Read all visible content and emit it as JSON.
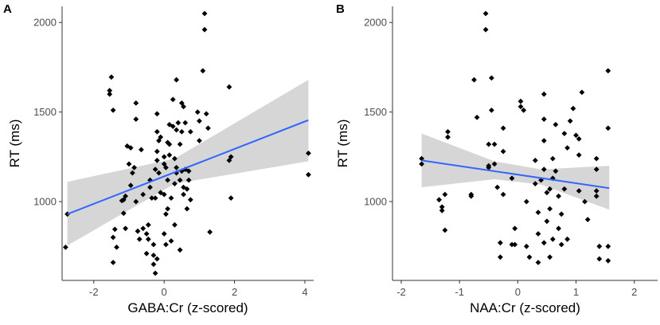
{
  "colors": {
    "points": "#000000",
    "fit_line": "#3366ff",
    "ci_band": "#cccccc",
    "axis": "#333333",
    "tick_text": "#4d4d4d"
  },
  "chart_data": [
    {
      "type": "scatter",
      "panel_label": "A",
      "title": "",
      "xlabel": "GABA:Cr (z-scored)",
      "ylabel": "RT (ms)",
      "xlim": [
        -2.9,
        4.25
      ],
      "ylim": [
        560,
        2090
      ],
      "x_ticks": [
        -2,
        0,
        2,
        4
      ],
      "y_ticks": [
        1000,
        1500,
        2000
      ],
      "x_tick_labels": [
        "-2",
        "0",
        "2",
        "4"
      ],
      "y_tick_labels": [
        "1000",
        "1500",
        "2000"
      ],
      "grid": false,
      "fit": {
        "x": [
          -2.75,
          4.1
        ],
        "y": [
          930,
          1455
        ]
      },
      "ci_band": {
        "x": [
          -2.75,
          0.3,
          4.1
        ],
        "upper": [
          1110,
          1240,
          1680
        ],
        "lower": [
          755,
          1100,
          1225
        ]
      },
      "points": [
        [
          -2.75,
          930
        ],
        [
          -2.8,
          745
        ],
        [
          -1.55,
          1620
        ],
        [
          -1.55,
          1600
        ],
        [
          -1.5,
          1695
        ],
        [
          -1.45,
          1510
        ],
        [
          -1.45,
          800
        ],
        [
          -1.45,
          660
        ],
        [
          -1.4,
          845
        ],
        [
          -1.35,
          745
        ],
        [
          -1.2,
          1005
        ],
        [
          -1.15,
          1010
        ],
        [
          -1.15,
          935
        ],
        [
          -1.1,
          1030
        ],
        [
          -1.1,
          850
        ],
        [
          -1.05,
          1310
        ],
        [
          -1.0,
          1210
        ],
        [
          -0.95,
          1300
        ],
        [
          -0.95,
          1090
        ],
        [
          -0.9,
          1160
        ],
        [
          -0.85,
          1190
        ],
        [
          -0.8,
          1550
        ],
        [
          -0.8,
          1460
        ],
        [
          -0.8,
          1000
        ],
        [
          -0.75,
          835
        ],
        [
          -0.7,
          790
        ],
        [
          -0.65,
          1290
        ],
        [
          -0.6,
          1040
        ],
        [
          -0.6,
          850
        ],
        [
          -0.5,
          820
        ],
        [
          -0.5,
          710
        ],
        [
          -0.45,
          790
        ],
        [
          -0.45,
          870
        ],
        [
          -0.4,
          1120
        ],
        [
          -0.4,
          1080
        ],
        [
          -0.35,
          1020
        ],
        [
          -0.3,
          650
        ],
        [
          -0.3,
          700
        ],
        [
          -0.3,
          760
        ],
        [
          -0.25,
          1180
        ],
        [
          -0.25,
          1020
        ],
        [
          -0.25,
          600
        ],
        [
          -0.2,
          1490
        ],
        [
          -0.2,
          1390
        ],
        [
          -0.2,
          1280
        ],
        [
          -0.2,
          1230
        ],
        [
          -0.2,
          680
        ],
        [
          -0.15,
          1340
        ],
        [
          -0.15,
          1160
        ],
        [
          -0.1,
          1360
        ],
        [
          -0.1,
          1050
        ],
        [
          0.0,
          1250
        ],
        [
          0.0,
          1210
        ],
        [
          0.0,
          1040
        ],
        [
          0.0,
          820
        ],
        [
          0.05,
          1190
        ],
        [
          0.05,
          930
        ],
        [
          0.05,
          760
        ],
        [
          0.1,
          1330
        ],
        [
          0.1,
          1120
        ],
        [
          0.1,
          960
        ],
        [
          0.15,
          1430
        ],
        [
          0.15,
          1320
        ],
        [
          0.15,
          1260
        ],
        [
          0.2,
          1020
        ],
        [
          0.2,
          780
        ],
        [
          0.25,
          1570
        ],
        [
          0.25,
          1420
        ],
        [
          0.3,
          1240
        ],
        [
          0.3,
          1100
        ],
        [
          0.3,
          870
        ],
        [
          0.35,
          1680
        ],
        [
          0.35,
          1400
        ],
        [
          0.35,
          1190
        ],
        [
          0.35,
          1160
        ],
        [
          0.4,
          1440
        ],
        [
          0.45,
          1320
        ],
        [
          0.45,
          1120
        ],
        [
          0.45,
          730
        ],
        [
          0.5,
          1550
        ],
        [
          0.5,
          1390
        ],
        [
          0.5,
          1170
        ],
        [
          0.55,
          1530
        ],
        [
          0.55,
          1080
        ],
        [
          0.55,
          1040
        ],
        [
          0.6,
          1440
        ],
        [
          0.6,
          1180
        ],
        [
          0.65,
          1070
        ],
        [
          0.65,
          960
        ],
        [
          0.7,
          1170
        ],
        [
          0.7,
          1120
        ],
        [
          0.75,
          1390
        ],
        [
          0.75,
          1010
        ],
        [
          0.95,
          1500
        ],
        [
          1.0,
          1450
        ],
        [
          1.0,
          1340
        ],
        [
          1.1,
          1730
        ],
        [
          1.15,
          1960
        ],
        [
          1.15,
          2050
        ],
        [
          1.2,
          1490
        ],
        [
          1.25,
          1410
        ],
        [
          1.3,
          830
        ],
        [
          1.85,
          1640
        ],
        [
          1.85,
          1230
        ],
        [
          1.9,
          1250
        ],
        [
          1.9,
          1020
        ],
        [
          4.1,
          1270
        ],
        [
          4.1,
          1150
        ]
      ]
    },
    {
      "type": "scatter",
      "panel_label": "B",
      "title": "",
      "xlabel": "NAA:Cr (z-scored)",
      "ylabel": "RT (ms)",
      "xlim": [
        -2.15,
        2.4
      ],
      "ylim": [
        560,
        2090
      ],
      "x_ticks": [
        -2,
        -1,
        0,
        1,
        2
      ],
      "y_ticks": [
        1000,
        1500,
        2000
      ],
      "x_tick_labels": [
        "-2",
        "-1",
        "0",
        "1",
        "2"
      ],
      "y_tick_labels": [
        "1000",
        "1500",
        "2000"
      ],
      "grid": false,
      "fit": {
        "x": [
          -1.65,
          1.57
        ],
        "y": [
          1230,
          1075
        ]
      },
      "ci_band": {
        "x": [
          -1.65,
          -0.4,
          0.4,
          1.57
        ],
        "upper": [
          1380,
          1225,
          1180,
          1200
        ],
        "lower": [
          1080,
          1125,
          1095,
          955
        ]
      },
      "points": [
        [
          -1.65,
          1240
        ],
        [
          -1.65,
          1210
        ],
        [
          -1.35,
          1010
        ],
        [
          -1.3,
          970
        ],
        [
          -1.3,
          950
        ],
        [
          -1.25,
          1040
        ],
        [
          -1.2,
          1390
        ],
        [
          -1.2,
          1360
        ],
        [
          -1.25,
          840
        ],
        [
          -0.8,
          1040
        ],
        [
          -0.8,
          1030
        ],
        [
          -0.75,
          1680
        ],
        [
          -0.7,
          1470
        ],
        [
          -0.55,
          2050
        ],
        [
          -0.55,
          1960
        ],
        [
          -0.5,
          1320
        ],
        [
          -0.5,
          1200
        ],
        [
          -0.5,
          1190
        ],
        [
          -0.45,
          1690
        ],
        [
          -0.45,
          1510
        ],
        [
          -0.4,
          1320
        ],
        [
          -0.4,
          1210
        ],
        [
          -0.35,
          1080
        ],
        [
          -0.3,
          770
        ],
        [
          -0.3,
          690
        ],
        [
          -0.25,
          1410
        ],
        [
          -0.25,
          1280
        ],
        [
          -0.25,
          1040
        ],
        [
          -0.1,
          1130
        ],
        [
          -0.1,
          760
        ],
        [
          -0.05,
          850
        ],
        [
          -0.05,
          760
        ],
        [
          0.05,
          1560
        ],
        [
          0.05,
          1530
        ],
        [
          0.1,
          1510
        ],
        [
          0.15,
          1000
        ],
        [
          0.15,
          750
        ],
        [
          0.2,
          690
        ],
        [
          0.3,
          1230
        ],
        [
          0.3,
          1100
        ],
        [
          0.35,
          940
        ],
        [
          0.35,
          820
        ],
        [
          0.35,
          660
        ],
        [
          0.4,
          1120
        ],
        [
          0.45,
          1600
        ],
        [
          0.45,
          1460
        ],
        [
          0.45,
          1340
        ],
        [
          0.45,
          1180
        ],
        [
          0.45,
          770
        ],
        [
          0.5,
          1050
        ],
        [
          0.5,
          890
        ],
        [
          0.55,
          1070
        ],
        [
          0.55,
          960
        ],
        [
          0.55,
          690
        ],
        [
          0.6,
          1240
        ],
        [
          0.6,
          1130
        ],
        [
          0.6,
          790
        ],
        [
          0.65,
          1430
        ],
        [
          0.65,
          1170
        ],
        [
          0.7,
          1030
        ],
        [
          0.7,
          850
        ],
        [
          0.75,
          930
        ],
        [
          0.75,
          760
        ],
        [
          0.8,
          1380
        ],
        [
          0.8,
          1070
        ],
        [
          0.85,
          1300
        ],
        [
          0.85,
          790
        ],
        [
          0.9,
          1450
        ],
        [
          0.95,
          1520
        ],
        [
          1.0,
          1370
        ],
        [
          1.05,
          1350
        ],
        [
          1.05,
          1260
        ],
        [
          1.05,
          1060
        ],
        [
          1.1,
          1610
        ],
        [
          1.15,
          1000
        ],
        [
          1.2,
          900
        ],
        [
          1.35,
          1240
        ],
        [
          1.35,
          1180
        ],
        [
          1.35,
          1060
        ],
        [
          1.35,
          1030
        ],
        [
          1.4,
          750
        ],
        [
          1.4,
          680
        ],
        [
          1.55,
          1730
        ],
        [
          1.55,
          1410
        ],
        [
          1.55,
          750
        ],
        [
          1.55,
          670
        ]
      ]
    }
  ]
}
